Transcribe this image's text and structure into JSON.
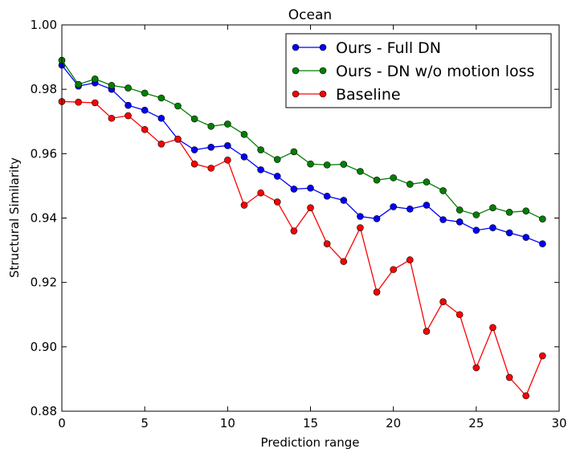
{
  "chart_data": {
    "type": "line",
    "title": "Ocean",
    "xlabel": "Prediction range",
    "ylabel": "Structural Similarity",
    "xlim": [
      0,
      30
    ],
    "ylim": [
      0.88,
      1.0
    ],
    "xticks": [
      0,
      5,
      10,
      15,
      20,
      25,
      30
    ],
    "xtick_labels": [
      "0",
      "5",
      "10",
      "15",
      "20",
      "25",
      "30"
    ],
    "yticks": [
      0.88,
      0.9,
      0.92,
      0.94,
      0.96,
      0.98,
      1.0
    ],
    "ytick_labels": [
      "0.88",
      "0.90",
      "0.92",
      "0.94",
      "0.96",
      "0.98",
      "1.00"
    ],
    "grid": false,
    "legend_position": "top-right",
    "x": [
      0,
      1,
      2,
      3,
      4,
      5,
      6,
      7,
      8,
      9,
      10,
      11,
      12,
      13,
      14,
      15,
      16,
      17,
      18,
      19,
      20,
      21,
      22,
      23,
      24,
      25,
      26,
      27,
      28,
      29
    ],
    "series": [
      {
        "name": "Ours - Full DN",
        "color": "#0000ff",
        "values": [
          0.9875,
          0.981,
          0.982,
          0.98,
          0.975,
          0.9735,
          0.971,
          0.9645,
          0.9612,
          0.962,
          0.9625,
          0.959,
          0.955,
          0.953,
          0.949,
          0.9493,
          0.9468,
          0.9455,
          0.9405,
          0.9398,
          0.9435,
          0.9428,
          0.944,
          0.9395,
          0.9388,
          0.9362,
          0.937,
          0.9354,
          0.934,
          0.932
        ]
      },
      {
        "name": "Ours - DN w/o motion loss",
        "color": "#008000",
        "values": [
          0.989,
          0.9815,
          0.9832,
          0.9812,
          0.9804,
          0.9788,
          0.9773,
          0.9748,
          0.9708,
          0.9685,
          0.9692,
          0.966,
          0.9612,
          0.9582,
          0.9606,
          0.9568,
          0.9565,
          0.9567,
          0.9545,
          0.9518,
          0.9525,
          0.9505,
          0.9512,
          0.9485,
          0.9425,
          0.941,
          0.9432,
          0.9418,
          0.9422,
          0.9397
        ]
      },
      {
        "name": "Baseline",
        "color": "#ff0000",
        "values": [
          0.9762,
          0.976,
          0.9758,
          0.971,
          0.9718,
          0.9675,
          0.963,
          0.9645,
          0.9568,
          0.9555,
          0.958,
          0.944,
          0.9478,
          0.945,
          0.936,
          0.9432,
          0.932,
          0.9265,
          0.937,
          0.917,
          0.924,
          0.927,
          0.9048,
          0.914,
          0.91,
          0.8935,
          0.906,
          0.8905,
          0.8848,
          0.8972
        ]
      }
    ]
  }
}
